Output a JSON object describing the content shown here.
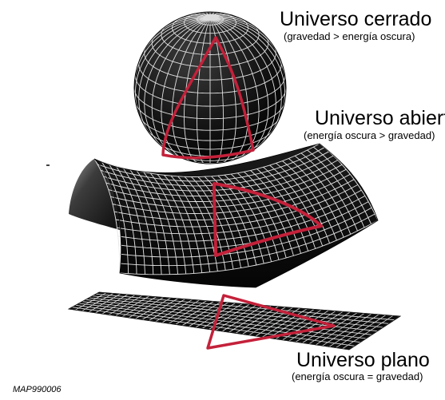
{
  "closed": {
    "title": "Universo cerrado",
    "subtitle": "(gravedad > energía oscura)"
  },
  "open": {
    "title": "Universo abierto",
    "subtitle": "(energía oscura > gravedad)"
  },
  "flat": {
    "title": "Universo plano",
    "subtitle": "(energía oscura = gravedad)"
  },
  "credit": "MAP990006",
  "colors": {
    "surface": "#111111",
    "grid": "#e8e8e8",
    "triangle": "#c4213a",
    "text": "#000000"
  }
}
